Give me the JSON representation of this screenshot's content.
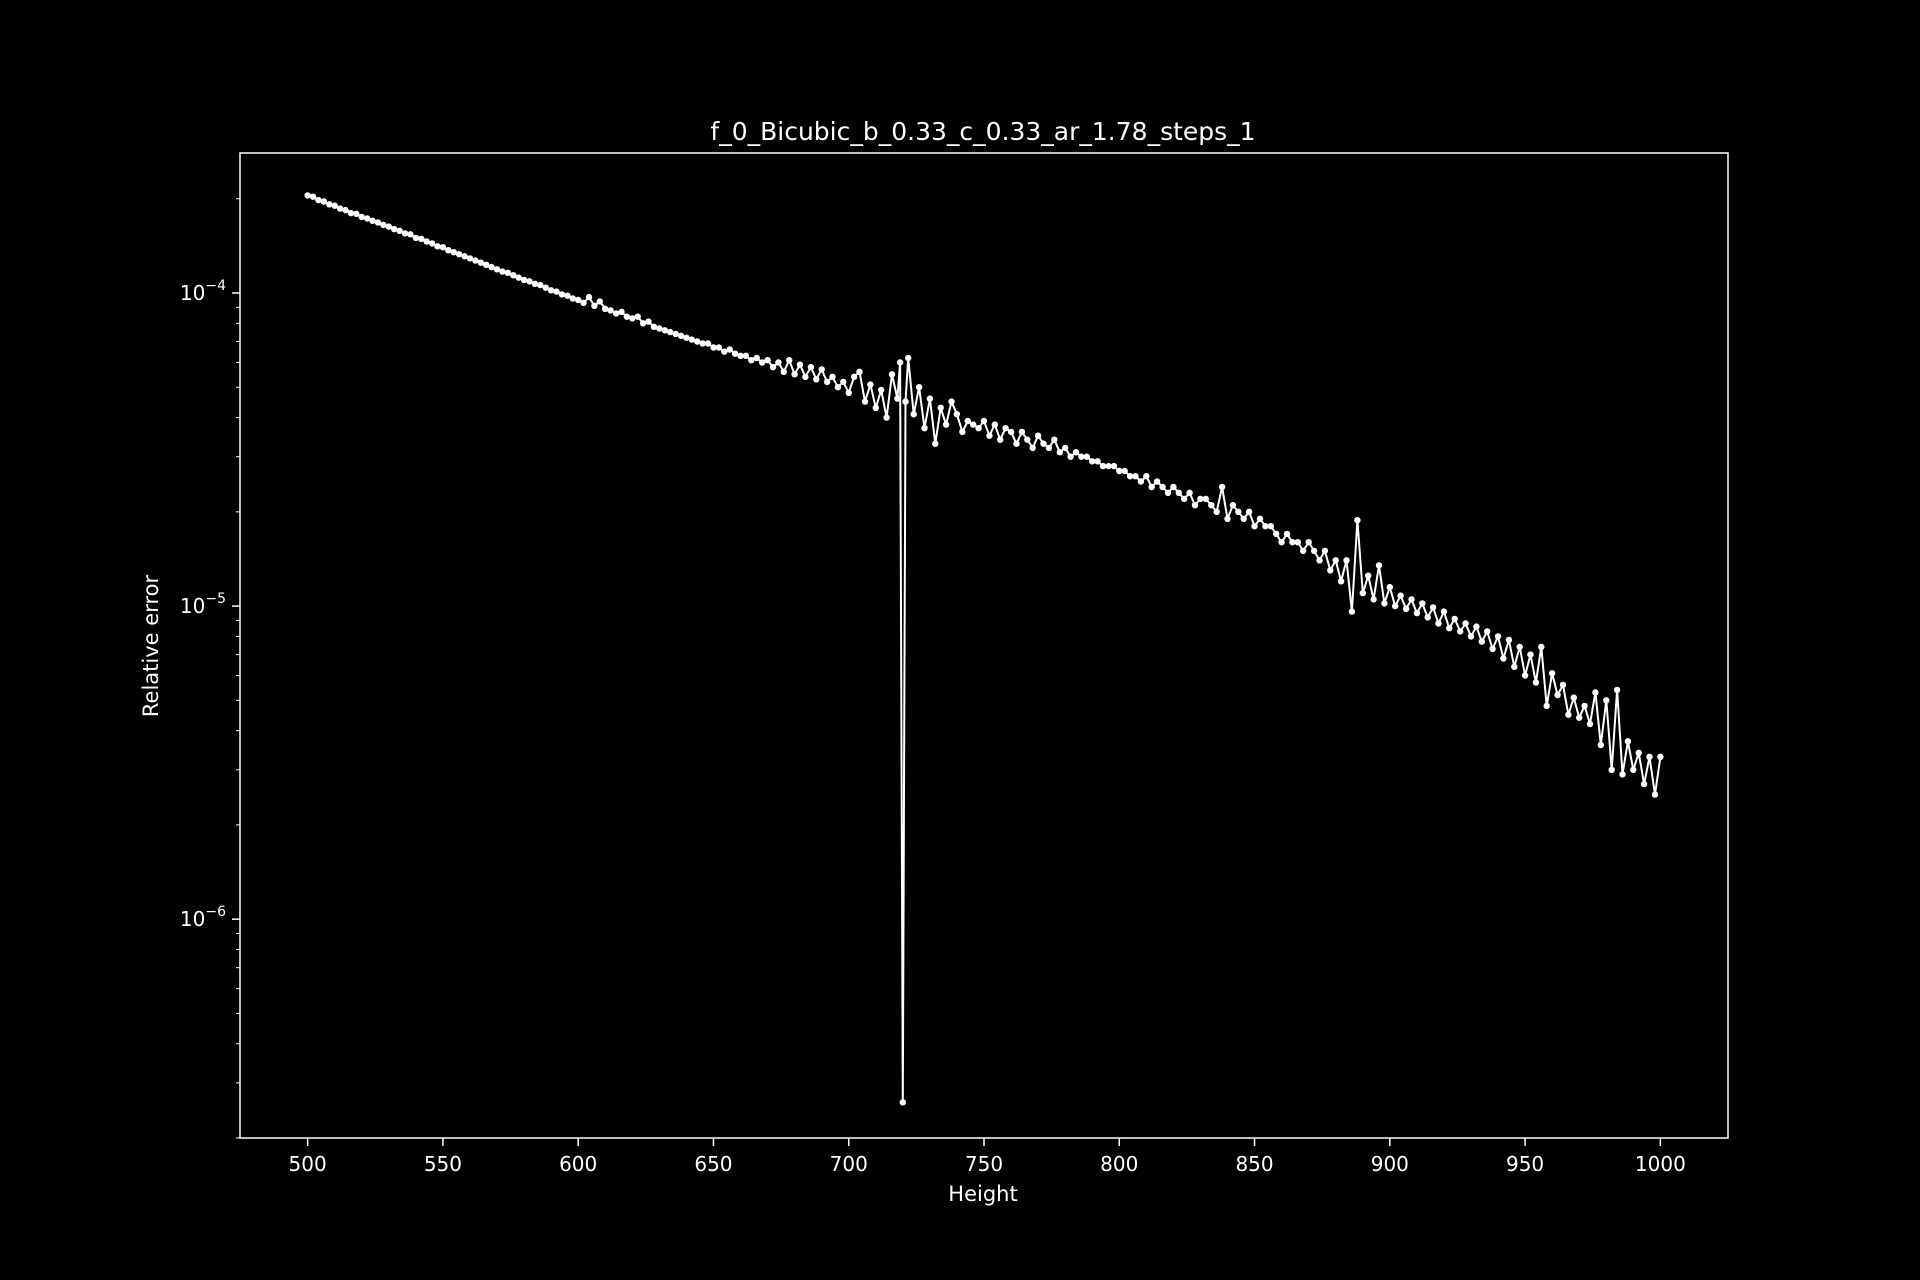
{
  "chart_data": {
    "type": "line",
    "title": "f_0_Bicubic_b_0.33_c_0.33_ar_1.78_steps_1",
    "xlabel": "Height",
    "ylabel": "Relative error",
    "y_scale": "log",
    "xlim": [
      475,
      1025
    ],
    "ylim": [
      2e-07,
      0.00028
    ],
    "x_ticks": [
      500,
      550,
      600,
      650,
      700,
      750,
      800,
      850,
      900,
      950,
      1000
    ],
    "y_ticks": [
      {
        "value": 1e-06,
        "base": "10",
        "exp": "−6"
      },
      {
        "value": 1e-05,
        "base": "10",
        "exp": "−5"
      },
      {
        "value": 0.0001,
        "base": "10",
        "exp": "−4"
      }
    ],
    "grid": false,
    "legend": "none",
    "colors": {
      "background": "#000000",
      "line": "#ffffff",
      "axes": "#ffffff"
    },
    "series": [
      {
        "x": [
          500,
          502,
          504,
          506,
          508,
          510,
          512,
          514,
          516,
          518,
          520,
          522,
          524,
          526,
          528,
          530,
          532,
          534,
          536,
          538,
          540,
          542,
          544,
          546,
          548,
          550,
          552,
          554,
          556,
          558,
          560,
          562,
          564,
          566,
          568,
          570,
          572,
          574,
          576,
          578,
          580,
          582,
          584,
          586,
          588,
          590,
          592,
          594,
          596,
          598,
          600,
          602,
          604,
          606,
          608,
          610,
          612,
          614,
          616,
          618,
          620,
          622,
          624,
          626,
          628,
          630,
          632,
          634,
          636,
          638,
          640,
          642,
          644,
          646,
          648,
          650,
          652,
          654,
          656,
          658,
          660,
          662,
          664,
          666,
          668,
          670,
          672,
          674,
          676,
          678,
          680,
          682,
          684,
          686,
          688,
          690,
          692,
          694,
          696,
          698,
          700,
          702,
          704,
          706,
          708,
          710,
          712,
          714,
          716,
          718,
          719,
          720,
          721,
          722,
          724,
          726,
          728,
          730,
          732,
          734,
          736,
          738,
          740,
          742,
          744,
          746,
          748,
          750,
          752,
          754,
          756,
          758,
          760,
          762,
          764,
          766,
          768,
          770,
          772,
          774,
          776,
          778,
          780,
          782,
          784,
          786,
          788,
          790,
          792,
          794,
          796,
          798,
          800,
          802,
          804,
          806,
          808,
          810,
          812,
          814,
          816,
          818,
          820,
          822,
          824,
          826,
          828,
          830,
          832,
          834,
          836,
          838,
          840,
          842,
          844,
          846,
          848,
          850,
          852,
          854,
          856,
          858,
          860,
          862,
          864,
          866,
          868,
          870,
          872,
          874,
          876,
          878,
          880,
          882,
          884,
          886,
          888,
          890,
          892,
          894,
          896,
          898,
          900,
          902,
          904,
          906,
          908,
          910,
          912,
          914,
          916,
          918,
          920,
          922,
          924,
          926,
          928,
          930,
          932,
          934,
          936,
          938,
          940,
          942,
          944,
          946,
          948,
          950,
          952,
          954,
          956,
          958,
          960,
          962,
          964,
          966,
          968,
          970,
          972,
          974,
          976,
          978,
          980,
          982,
          984,
          986,
          988,
          990,
          992,
          994,
          996,
          998,
          1000
        ],
        "y": [
          0.000205,
          0.000203,
          0.000198,
          0.000196,
          0.000192,
          0.00019,
          0.000186,
          0.000184,
          0.00018,
          0.000179,
          0.000175,
          0.000173,
          0.00017,
          0.000168,
          0.000165,
          0.000163,
          0.00016,
          0.000158,
          0.000155,
          0.000154,
          0.00015,
          0.000149,
          0.000146,
          0.000144,
          0.000141,
          0.00014,
          0.000137,
          0.000135,
          0.000133,
          0.000131,
          0.000129,
          0.000127,
          0.000125,
          0.000123,
          0.000121,
          0.000119,
          0.000117,
          0.000116,
          0.000114,
          0.000112,
          0.00011,
          0.000109,
          0.000107,
          0.000106,
          0.000104,
          0.000102,
          0.000101,
          9.9e-05,
          9.8e-05,
          9.6e-05,
          9.5e-05,
          9.3e-05,
          9.7e-05,
          9.1e-05,
          9.4e-05,
          8.9e-05,
          8.8e-05,
          8.6e-05,
          8.7e-05,
          8.4e-05,
          8.3e-05,
          8.4e-05,
          8e-05,
          8.1e-05,
          7.8e-05,
          7.7e-05,
          7.6e-05,
          7.5e-05,
          7.4e-05,
          7.3e-05,
          7.2e-05,
          7.1e-05,
          7e-05,
          6.9e-05,
          6.9e-05,
          6.7e-05,
          6.7e-05,
          6.5e-05,
          6.6e-05,
          6.4e-05,
          6.3e-05,
          6.3e-05,
          6.1e-05,
          6.2e-05,
          6e-05,
          6.1e-05,
          5.8e-05,
          6e-05,
          5.6e-05,
          6.1e-05,
          5.5e-05,
          5.9e-05,
          5.4e-05,
          5.8e-05,
          5.3e-05,
          5.7e-05,
          5.2e-05,
          5.4e-05,
          5e-05,
          5.2e-05,
          4.8e-05,
          5.4e-05,
          5.6e-05,
          4.5e-05,
          5.1e-05,
          4.3e-05,
          4.9e-05,
          4e-05,
          5.5e-05,
          4.6e-05,
          6e-05,
          2.6e-07,
          4.5e-05,
          6.2e-05,
          4.1e-05,
          5e-05,
          3.7e-05,
          4.6e-05,
          3.3e-05,
          4.3e-05,
          3.8e-05,
          4.5e-05,
          4.1e-05,
          3.6e-05,
          3.9e-05,
          3.8e-05,
          3.7e-05,
          3.9e-05,
          3.5e-05,
          3.8e-05,
          3.4e-05,
          3.7e-05,
          3.6e-05,
          3.3e-05,
          3.6e-05,
          3.4e-05,
          3.2e-05,
          3.5e-05,
          3.3e-05,
          3.2e-05,
          3.4e-05,
          3.1e-05,
          3.2e-05,
          3e-05,
          3.1e-05,
          3e-05,
          3e-05,
          2.9e-05,
          2.9e-05,
          2.8e-05,
          2.8e-05,
          2.8e-05,
          2.7e-05,
          2.7e-05,
          2.6e-05,
          2.6e-05,
          2.5e-05,
          2.6e-05,
          2.4e-05,
          2.5e-05,
          2.4e-05,
          2.3e-05,
          2.4e-05,
          2.3e-05,
          2.2e-05,
          2.3e-05,
          2.1e-05,
          2.2e-05,
          2.2e-05,
          2.1e-05,
          2e-05,
          2.4e-05,
          1.9e-05,
          2.1e-05,
          2e-05,
          1.9e-05,
          2e-05,
          1.8e-05,
          1.9e-05,
          1.8e-05,
          1.8e-05,
          1.7e-05,
          1.6e-05,
          1.7e-05,
          1.6e-05,
          1.6e-05,
          1.5e-05,
          1.6e-05,
          1.5e-05,
          1.4e-05,
          1.5e-05,
          1.3e-05,
          1.4e-05,
          1.2e-05,
          1.4e-05,
          9.6e-06,
          1.88e-05,
          1.1e-05,
          1.25e-05,
          1.05e-05,
          1.35e-05,
          1.02e-05,
          1.15e-05,
          1e-05,
          1.08e-05,
          9.8e-06,
          1.05e-05,
          9.5e-06,
          1.02e-05,
          9.2e-06,
          9.9e-06,
          8.8e-06,
          9.6e-06,
          8.5e-06,
          9.1e-06,
          8.3e-06,
          8.8e-06,
          8e-06,
          8.6e-06,
          7.7e-06,
          8.3e-06,
          7.3e-06,
          8e-06,
          6.8e-06,
          7.8e-06,
          6.4e-06,
          7.4e-06,
          6e-06,
          7e-06,
          5.7e-06,
          7.4e-06,
          4.8e-06,
          6.1e-06,
          5.2e-06,
          5.6e-06,
          4.5e-06,
          5.1e-06,
          4.4e-06,
          4.8e-06,
          4.2e-06,
          5.3e-06,
          3.6e-06,
          5e-06,
          3e-06,
          5.4e-06,
          2.9e-06,
          3.7e-06,
          3e-06,
          3.4e-06,
          2.7e-06,
          3.3e-06,
          2.5e-06,
          3.3e-06
        ]
      }
    ]
  }
}
